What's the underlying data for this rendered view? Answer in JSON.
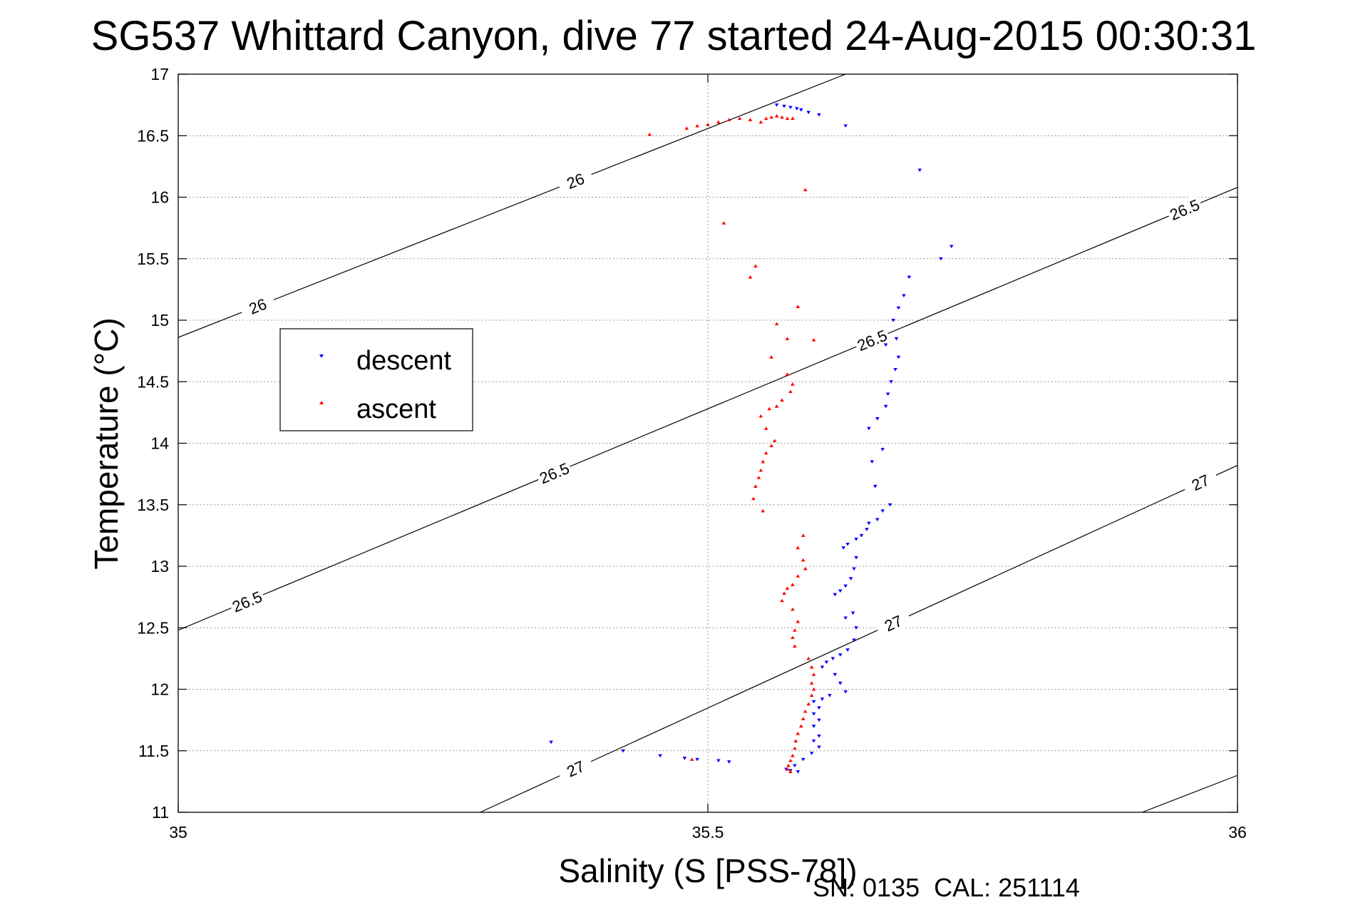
{
  "chart_data": {
    "type": "scatter",
    "title": "SG537 Whittard Canyon, dive 77 started 24-Aug-2015 00:30:31",
    "xlabel": "Salinity (S [PSS-78])",
    "ylabel": "Temperature (°C)",
    "xlim": [
      35,
      36
    ],
    "ylim": [
      11,
      17
    ],
    "xticks": [
      "35",
      "35.5",
      "36"
    ],
    "yticks": [
      "11",
      "11.5",
      "12",
      "12.5",
      "13",
      "13.5",
      "14",
      "14.5",
      "15",
      "15.5",
      "16",
      "16.5",
      "17"
    ],
    "grid": true,
    "legend_position": "left",
    "footer": "SN: 0135  CAL: 251114",
    "colors": {
      "descent": "#0000ff",
      "ascent": "#ff0000",
      "contour": "#000000",
      "grid": "#999999"
    },
    "series": [
      {
        "name": "descent",
        "marker": "triangle-down",
        "points": [
          [
            35.565,
            16.75
          ],
          [
            35.572,
            16.74
          ],
          [
            35.578,
            16.73
          ],
          [
            35.584,
            16.72
          ],
          [
            35.588,
            16.71
          ],
          [
            35.595,
            16.69
          ],
          [
            35.605,
            16.67
          ],
          [
            35.63,
            16.58
          ],
          [
            35.7,
            16.22
          ],
          [
            35.72,
            15.5
          ],
          [
            35.73,
            15.6
          ],
          [
            35.69,
            15.35
          ],
          [
            35.685,
            15.2
          ],
          [
            35.68,
            15.1
          ],
          [
            35.675,
            15.0
          ],
          [
            35.678,
            14.85
          ],
          [
            35.668,
            14.8
          ],
          [
            35.68,
            14.7
          ],
          [
            35.677,
            14.6
          ],
          [
            35.673,
            14.5
          ],
          [
            35.67,
            14.4
          ],
          [
            35.668,
            14.3
          ],
          [
            35.66,
            14.2
          ],
          [
            35.652,
            14.12
          ],
          [
            35.665,
            13.95
          ],
          [
            35.655,
            13.85
          ],
          [
            35.658,
            13.65
          ],
          [
            35.672,
            13.5
          ],
          [
            35.665,
            13.45
          ],
          [
            35.66,
            13.38
          ],
          [
            35.652,
            13.35
          ],
          [
            35.65,
            13.3
          ],
          [
            35.645,
            13.25
          ],
          [
            35.64,
            13.22
          ],
          [
            35.632,
            13.18
          ],
          [
            35.628,
            13.15
          ],
          [
            35.64,
            13.07
          ],
          [
            35.638,
            12.98
          ],
          [
            35.635,
            12.9
          ],
          [
            35.63,
            12.84
          ],
          [
            35.625,
            12.8
          ],
          [
            35.62,
            12.77
          ],
          [
            35.637,
            12.62
          ],
          [
            35.63,
            12.58
          ],
          [
            35.64,
            12.5
          ],
          [
            35.638,
            12.4
          ],
          [
            35.632,
            12.32
          ],
          [
            35.625,
            12.28
          ],
          [
            35.618,
            12.25
          ],
          [
            35.612,
            12.22
          ],
          [
            35.608,
            12.18
          ],
          [
            35.62,
            12.12
          ],
          [
            35.625,
            12.05
          ],
          [
            35.63,
            11.98
          ],
          [
            35.615,
            11.95
          ],
          [
            35.608,
            11.92
          ],
          [
            35.6,
            11.9
          ],
          [
            35.605,
            11.85
          ],
          [
            35.6,
            11.8
          ],
          [
            35.605,
            11.75
          ],
          [
            35.6,
            11.7
          ],
          [
            35.605,
            11.62
          ],
          [
            35.6,
            11.58
          ],
          [
            35.605,
            11.53
          ],
          [
            35.598,
            11.48
          ],
          [
            35.59,
            11.43
          ],
          [
            35.582,
            11.38
          ],
          [
            35.574,
            11.35
          ],
          [
            35.585,
            11.33
          ],
          [
            35.578,
            11.34
          ],
          [
            35.352,
            11.57
          ],
          [
            35.42,
            11.5
          ],
          [
            35.455,
            11.46
          ],
          [
            35.478,
            11.44
          ],
          [
            35.49,
            11.43
          ],
          [
            35.51,
            11.42
          ],
          [
            35.52,
            11.41
          ]
        ]
      },
      {
        "name": "ascent",
        "marker": "triangle-up",
        "points": [
          [
            35.445,
            16.51
          ],
          [
            35.48,
            16.56
          ],
          [
            35.49,
            16.58
          ],
          [
            35.5,
            16.59
          ],
          [
            35.51,
            16.61
          ],
          [
            35.52,
            16.63
          ],
          [
            35.53,
            16.64
          ],
          [
            35.54,
            16.63
          ],
          [
            35.55,
            16.61
          ],
          [
            35.555,
            16.64
          ],
          [
            35.56,
            16.65
          ],
          [
            35.565,
            16.66
          ],
          [
            35.57,
            16.65
          ],
          [
            35.575,
            16.64
          ],
          [
            35.58,
            16.64
          ],
          [
            35.592,
            16.06
          ],
          [
            35.515,
            15.79
          ],
          [
            35.545,
            15.44
          ],
          [
            35.54,
            15.35
          ],
          [
            35.585,
            15.11
          ],
          [
            35.565,
            14.97
          ],
          [
            35.575,
            14.85
          ],
          [
            35.6,
            14.84
          ],
          [
            35.56,
            14.7
          ],
          [
            35.575,
            14.56
          ],
          [
            35.58,
            14.48
          ],
          [
            35.578,
            14.42
          ],
          [
            35.57,
            14.35
          ],
          [
            35.565,
            14.3
          ],
          [
            35.558,
            14.28
          ],
          [
            35.55,
            14.22
          ],
          [
            35.555,
            14.12
          ],
          [
            35.563,
            14.02
          ],
          [
            35.56,
            13.98
          ],
          [
            35.555,
            13.92
          ],
          [
            35.552,
            13.85
          ],
          [
            35.55,
            13.78
          ],
          [
            35.548,
            13.72
          ],
          [
            35.545,
            13.65
          ],
          [
            35.543,
            13.55
          ],
          [
            35.552,
            13.45
          ],
          [
            35.59,
            13.25
          ],
          [
            35.585,
            13.15
          ],
          [
            35.59,
            13.05
          ],
          [
            35.592,
            12.98
          ],
          [
            35.585,
            12.92
          ],
          [
            35.58,
            12.85
          ],
          [
            35.575,
            12.82
          ],
          [
            35.572,
            12.78
          ],
          [
            35.57,
            12.72
          ],
          [
            35.58,
            12.65
          ],
          [
            35.585,
            12.55
          ],
          [
            35.582,
            12.48
          ],
          [
            35.58,
            12.42
          ],
          [
            35.582,
            12.35
          ],
          [
            35.595,
            12.25
          ],
          [
            35.598,
            12.18
          ],
          [
            35.6,
            12.12
          ],
          [
            35.598,
            12.05
          ],
          [
            35.6,
            12.0
          ],
          [
            35.598,
            11.95
          ],
          [
            35.595,
            11.88
          ],
          [
            35.592,
            11.82
          ],
          [
            35.59,
            11.76
          ],
          [
            35.588,
            11.7
          ],
          [
            35.585,
            11.64
          ],
          [
            35.583,
            11.58
          ],
          [
            35.582,
            11.52
          ],
          [
            35.58,
            11.46
          ],
          [
            35.578,
            11.42
          ],
          [
            35.576,
            11.38
          ],
          [
            35.575,
            11.35
          ],
          [
            35.578,
            11.33
          ],
          [
            35.485,
            11.43
          ]
        ]
      }
    ],
    "contours": [
      {
        "label": "26",
        "points": [
          [
            35.0,
            14.86
          ],
          [
            35.63,
            17.0
          ]
        ],
        "labels_at": [
          35.075,
          35.375
        ]
      },
      {
        "label": "26.5",
        "points": [
          [
            35.0,
            12.48
          ],
          [
            36.0,
            16.08
          ]
        ],
        "labels_at": [
          35.065,
          35.355,
          35.655,
          35.95
        ]
      },
      {
        "label": "27",
        "points": [
          [
            35.285,
            11.0
          ],
          [
            36.0,
            13.82
          ]
        ],
        "labels_at": [
          35.375,
          35.675,
          35.965
        ]
      },
      {
        "label": "",
        "points": [
          [
            35.91,
            11.0
          ],
          [
            36.0,
            11.3
          ]
        ],
        "labels_at": []
      }
    ]
  }
}
